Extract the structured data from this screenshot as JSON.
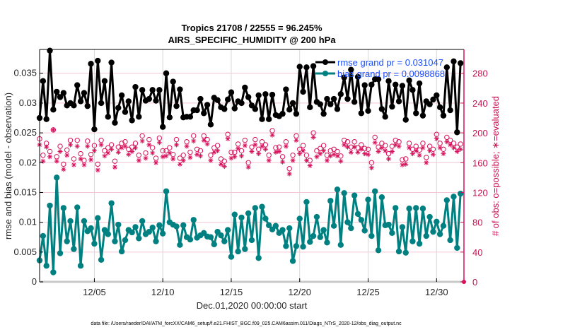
{
  "chart_data": {
    "type": "line",
    "title": "Tropics 21708 / 22555 = 96.245%",
    "subtitle": "AIRS_SPECIFIC_HUMIDITY @ 200 hPa",
    "xlabel": "Dec.01,2020 00:00:00 start",
    "ylabel": "rmse and bias (model - observation)",
    "y2label": "# of obs: o=possible; ∗=evaluated",
    "footnote": "data file: /Users/raeder/DAI/ATM_forcXX/CAM6_setup/f.e21.FHIST_BGC.f09_025.CAM6assim.011/Diags_NTrS_2020-12/obs_diag_output.nc",
    "x_start_day": 1,
    "x_step_days": 0.25,
    "xlim_days": [
      1,
      32
    ],
    "xticks": [
      {
        "day": 5,
        "label": "12/05"
      },
      {
        "day": 10,
        "label": "12/10"
      },
      {
        "day": 15,
        "label": "12/15"
      },
      {
        "day": 20,
        "label": "12/20"
      },
      {
        "day": 25,
        "label": "12/25"
      },
      {
        "day": 30,
        "label": "12/30"
      }
    ],
    "ylim": [
      0,
      0.039
    ],
    "yticks": [
      {
        "value": 0,
        "label": "0"
      },
      {
        "value": 0.005,
        "label": "0.005"
      },
      {
        "value": 0.01,
        "label": "0.01"
      },
      {
        "value": 0.015,
        "label": "0.015"
      },
      {
        "value": 0.02,
        "label": "0.02"
      },
      {
        "value": 0.025,
        "label": "0.025"
      },
      {
        "value": 0.03,
        "label": "0.03"
      },
      {
        "value": 0.035,
        "label": "0.035"
      }
    ],
    "y2lim": [
      0,
      312
    ],
    "y2ticks": [
      {
        "value": 0,
        "label": "0"
      },
      {
        "value": 40,
        "label": "40"
      },
      {
        "value": 80,
        "label": "80"
      },
      {
        "value": 120,
        "label": "120"
      },
      {
        "value": 160,
        "label": "160"
      },
      {
        "value": 200,
        "label": "200"
      },
      {
        "value": 240,
        "label": "240"
      },
      {
        "value": 280,
        "label": "280"
      }
    ],
    "legend": {
      "placement": "top-right",
      "entries": [
        {
          "label": "rmse grand pr = 0.031047",
          "series": "rmse"
        },
        {
          "label": "bias grand pr = 0.0098868",
          "series": "bias"
        }
      ]
    },
    "colors": {
      "rmse": "#000000",
      "bias": "#008080",
      "obs": "#d6105a",
      "grid": "#f2c6d6",
      "vgrid": "#d8d8d8",
      "legend_text": "#1a4fff"
    },
    "series": [
      {
        "name": "rmse",
        "values": [
          0.0275,
          0.0337,
          0.0273,
          0.0388,
          0.0289,
          0.0319,
          0.031,
          0.0317,
          0.0296,
          0.03,
          0.0296,
          0.033,
          0.0303,
          0.0317,
          0.0295,
          0.0366,
          0.0256,
          0.0371,
          0.03,
          0.0337,
          0.0277,
          0.0368,
          0.0267,
          0.0292,
          0.0313,
          0.0285,
          0.0303,
          0.0271,
          0.0327,
          0.0277,
          0.0322,
          0.0304,
          0.0307,
          0.0322,
          0.0304,
          0.0322,
          0.026,
          0.035,
          0.0276,
          0.0336,
          0.0295,
          0.0323,
          0.0276,
          0.0277,
          0.0277,
          0.0288,
          0.0288,
          0.0307,
          0.0283,
          0.0297,
          0.0264,
          0.0309,
          0.0305,
          0.0293,
          0.029,
          0.0306,
          0.0318,
          0.0291,
          0.0303,
          0.03,
          0.0326,
          0.031,
          0.0296,
          0.029,
          0.0313,
          0.0273,
          0.0315,
          0.0273,
          0.0314,
          0.028,
          0.0278,
          0.0282,
          0.0323,
          0.0289,
          0.03,
          0.0282,
          0.0361,
          0.0319,
          0.036,
          0.0293,
          0.0362,
          0.0302,
          0.0298,
          0.0282,
          0.0307,
          0.0298,
          0.0307,
          0.029,
          0.0315,
          0.0343,
          0.0307,
          0.0356,
          0.0302,
          0.0344,
          0.0283,
          0.033,
          0.0287,
          0.0331,
          0.034,
          0.034,
          0.029,
          0.0277,
          0.0337,
          0.0294,
          0.0331,
          0.0303,
          0.0329,
          0.0272,
          0.0338,
          0.0322,
          0.0283,
          0.0333,
          0.0279,
          0.0303,
          0.0298,
          0.0306,
          0.0313,
          0.0293,
          0.0279,
          0.036,
          0.0288,
          0.037,
          0.0251,
          0.0367
        ]
      },
      {
        "name": "bias",
        "values": [
          0.0036,
          0.0077,
          0.0027,
          0.0128,
          0.0016,
          0.0175,
          0.0048,
          0.0124,
          0.0068,
          0.0102,
          0.0055,
          0.0125,
          0.0027,
          0.0102,
          0.0085,
          0.009,
          0.0064,
          0.0107,
          0.0037,
          0.0087,
          0.008,
          0.0132,
          0.0068,
          0.0096,
          0.0051,
          0.007,
          0.0087,
          0.0083,
          0.0092,
          0.0073,
          0.0102,
          0.008,
          0.0084,
          0.0091,
          0.0068,
          0.0095,
          0.0081,
          0.0152,
          0.01,
          0.0096,
          0.0093,
          0.0062,
          0.0095,
          0.0075,
          0.0071,
          0.0104,
          0.0074,
          0.0078,
          0.0082,
          0.0076,
          0.0075,
          0.0063,
          0.0084,
          0.0078,
          0.0068,
          0.0087,
          0.0042,
          0.0113,
          0.0051,
          0.0108,
          0.0055,
          0.0115,
          0.007,
          0.0124,
          0.004,
          0.0126,
          0.0106,
          0.0095,
          0.0088,
          0.0094,
          0.0082,
          0.0087,
          0.006,
          0.009,
          0.0035,
          0.006,
          0.0106,
          0.0059,
          0.0134,
          0.0067,
          0.0077,
          0.0109,
          0.0075,
          0.0087,
          0.0066,
          0.0136,
          0.0094,
          0.0155,
          0.0062,
          0.0149,
          0.01,
          0.009,
          0.0145,
          0.0114,
          0.0104,
          0.0086,
          0.0138,
          0.0077,
          0.0152,
          0.0053,
          0.0142,
          0.0095,
          0.0096,
          0.0082,
          0.0124,
          0.0051,
          0.0092,
          0.0049,
          0.0123,
          0.0068,
          0.0124,
          0.0064,
          0.0123,
          0.0077,
          0.0109,
          0.0084,
          0.0101,
          0.008,
          0.0094,
          0.0137,
          0.007,
          0.0143,
          0.0057,
          0.0148
        ]
      },
      {
        "name": "obs_possible",
        "values": [
          192,
          170,
          186,
          175,
          204,
          168,
          182,
          158,
          177,
          190,
          165,
          190,
          172,
          163,
          189,
          171,
          183,
          158,
          190,
          176,
          180,
          184,
          162,
          181,
          186,
          188,
          178,
          181,
          186,
          170,
          196,
          173,
          191,
          180,
          166,
          193,
          176,
          176,
          180,
          171,
          191,
          166,
          170,
          188,
          174,
          196,
          178,
          176,
          196,
          191,
          170,
          180,
          183,
          165,
          162,
          198,
          174,
          174,
          185,
          176,
          190,
          160,
          181,
          191,
          178,
          188,
          184,
          170,
          203,
          180,
          181,
          168,
          188,
          152,
          170,
          196,
          178,
          183,
          170,
          163,
          200,
          176,
          179,
          183,
          170,
          176,
          178,
          175,
          169,
          190,
          188,
          181,
          188,
          180,
          184,
          179,
          178,
          160,
          194,
          181,
          186,
          183,
          172,
          182,
          190,
          188,
          164,
          165,
          186,
          178,
          182,
          177,
          186,
          167,
          182,
          178,
          198,
          186,
          178,
          194,
          190,
          186,
          181,
          185
        ]
      },
      {
        "name": "obs_evaluated",
        "values": [
          184,
          162,
          181,
          168,
          204,
          162,
          175,
          151,
          170,
          184,
          157,
          182,
          165,
          157,
          182,
          164,
          176,
          150,
          184,
          169,
          173,
          178,
          154,
          174,
          180,
          182,
          171,
          175,
          180,
          163,
          189,
          166,
          184,
          173,
          160,
          187,
          168,
          169,
          173,
          165,
          184,
          158,
          163,
          182,
          167,
          189,
          171,
          169,
          190,
          185,
          163,
          174,
          176,
          158,
          155,
          192,
          166,
          168,
          179,
          169,
          183,
          154,
          175,
          184,
          172,
          182,
          178,
          163,
          197,
          174,
          175,
          161,
          182,
          145,
          163,
          190,
          172,
          176,
          163,
          156,
          194,
          168,
          172,
          176,
          163,
          169,
          171,
          169,
          162,
          184,
          181,
          174,
          181,
          174,
          178,
          172,
          171,
          153,
          187,
          175,
          180,
          176,
          165,
          175,
          184,
          182,
          157,
          158,
          180,
          172,
          176,
          170,
          180,
          160,
          176,
          171,
          192,
          180,
          172,
          188,
          184,
          180,
          175,
          178
        ]
      }
    ]
  }
}
